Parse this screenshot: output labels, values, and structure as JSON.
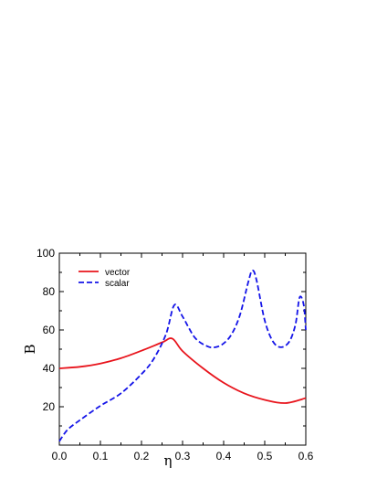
{
  "chart_data": {
    "type": "line",
    "xlabel": "η",
    "ylabel": "B",
    "xlim": [
      0.0,
      0.6
    ],
    "ylim": [
      0,
      100
    ],
    "xticks": [
      "0.0",
      "0.1",
      "0.2",
      "0.3",
      "0.4",
      "0.5",
      "0.6"
    ],
    "yticks": [
      "20",
      "40",
      "60",
      "80",
      "100"
    ],
    "legend_position": "top-left",
    "grid": false,
    "series": [
      {
        "name": "vector",
        "color": "#e8141c",
        "style": "solid",
        "x": [
          0.0,
          0.05,
          0.1,
          0.15,
          0.2,
          0.25,
          0.275,
          0.3,
          0.35,
          0.4,
          0.45,
          0.5,
          0.55,
          0.6
        ],
        "y": [
          40,
          40.8,
          42.5,
          45.3,
          49.2,
          53.5,
          55.5,
          49,
          40,
          32.5,
          27,
          23.6,
          21.9,
          24.5
        ]
      },
      {
        "name": "scalar",
        "color": "#1414e8",
        "style": "dashed",
        "x": [
          0.0,
          0.02,
          0.05,
          0.1,
          0.15,
          0.2,
          0.23,
          0.26,
          0.28,
          0.3,
          0.33,
          0.36,
          0.38,
          0.4,
          0.42,
          0.44,
          0.46,
          0.47,
          0.48,
          0.5,
          0.52,
          0.54,
          0.56,
          0.575,
          0.585,
          0.595,
          0.6
        ],
        "y": [
          2,
          8,
          13,
          20.5,
          27,
          37,
          45,
          58,
          73,
          67,
          56,
          51.5,
          51,
          53,
          58,
          68,
          85,
          91,
          86,
          65,
          54,
          51,
          54,
          63,
          77,
          73,
          60
        ]
      }
    ]
  }
}
